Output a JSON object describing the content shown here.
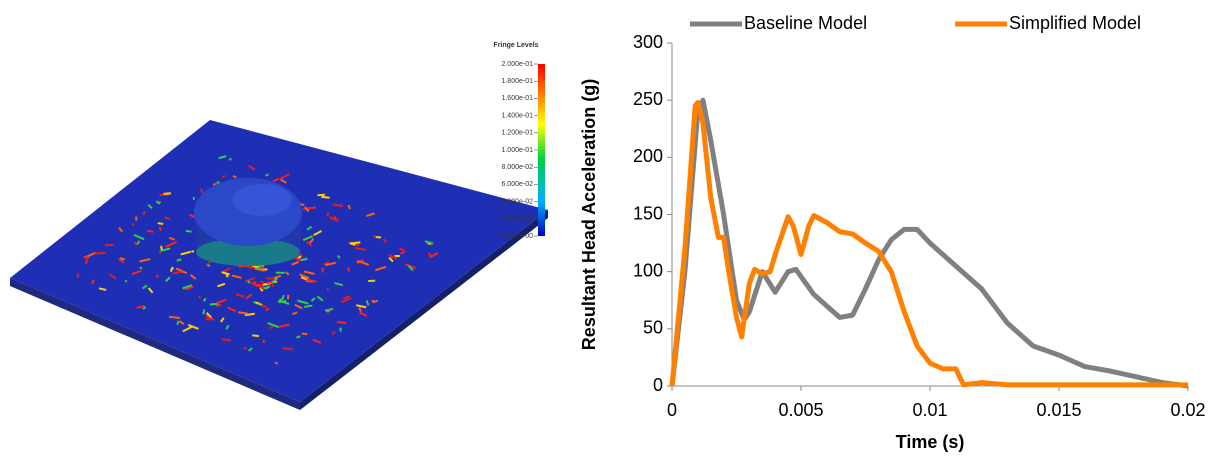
{
  "fringe_legend": {
    "title": "Fringe Levels",
    "levels": [
      "2.000e-01",
      "1.800e-01",
      "1.600e-01",
      "1.400e-01",
      "1.200e-01",
      "1.000e-01",
      "8.000e-02",
      "6.000e-02",
      "4.000e-02",
      "2.000e-02",
      "0.000e+00"
    ]
  },
  "chart_data": {
    "type": "line",
    "xlabel": "Time (s)",
    "ylabel": "Resultant Head Acceleration (g)",
    "xlim": [
      0,
      0.02
    ],
    "xticks": [
      0,
      0.005,
      0.01,
      0.015,
      0.02
    ],
    "ylim": [
      0,
      300
    ],
    "yticks": [
      0,
      50,
      100,
      150,
      200,
      250,
      300
    ],
    "legend": "top",
    "series": [
      {
        "name": "Baseline Model",
        "color": "#808080",
        "x": [
          0,
          0.0005,
          0.001,
          0.0012,
          0.0015,
          0.002,
          0.0025,
          0.0028,
          0.003,
          0.0035,
          0.004,
          0.0045,
          0.0048,
          0.0055,
          0.006,
          0.0065,
          0.007,
          0.0075,
          0.008,
          0.0085,
          0.009,
          0.0095,
          0.01,
          0.011,
          0.012,
          0.013,
          0.014,
          0.015,
          0.016,
          0.017,
          0.018,
          0.019,
          0.02
        ],
        "values": [
          0,
          100,
          240,
          250,
          215,
          150,
          75,
          58,
          65,
          100,
          82,
          100,
          102,
          80,
          70,
          60,
          62,
          85,
          110,
          128,
          137,
          137,
          125,
          105,
          85,
          55,
          35,
          27,
          17,
          13,
          8,
          3,
          0
        ]
      },
      {
        "name": "Simplified Model",
        "color": "#ff8000",
        "x": [
          0,
          0.0005,
          0.0009,
          0.001,
          0.0012,
          0.0015,
          0.0018,
          0.002,
          0.0022,
          0.0025,
          0.0027,
          0.003,
          0.0032,
          0.0035,
          0.0038,
          0.004,
          0.0045,
          0.0047,
          0.005,
          0.0053,
          0.0055,
          0.006,
          0.0065,
          0.007,
          0.0075,
          0.008,
          0.0085,
          0.009,
          0.0095,
          0.01,
          0.0105,
          0.011,
          0.0113,
          0.012,
          0.013,
          0.015,
          0.02
        ],
        "values": [
          0,
          120,
          245,
          248,
          230,
          165,
          130,
          130,
          100,
          60,
          43,
          90,
          102,
          98,
          100,
          115,
          148,
          140,
          115,
          140,
          149,
          143,
          135,
          133,
          125,
          118,
          100,
          65,
          35,
          20,
          15,
          15,
          1,
          3,
          1,
          1,
          1
        ]
      }
    ]
  }
}
